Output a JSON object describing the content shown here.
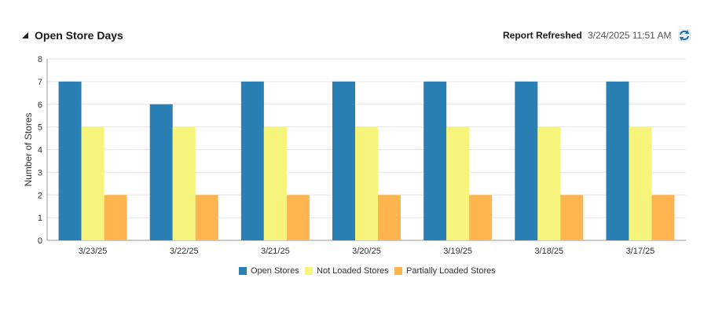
{
  "header": {
    "title": "Open Store Days",
    "refresh_label": "Report Refreshed",
    "refresh_time": "3/24/2025 11:51 AM"
  },
  "icons": {
    "collapse": "triangle-collapse-icon",
    "refresh": "refresh-icon"
  },
  "colors": {
    "open": "#2a7fb4",
    "not_loaded": "#f6f47b",
    "partially_loaded": "#feb54f"
  },
  "chart_data": {
    "type": "bar",
    "categories": [
      "3/23/25",
      "3/22/25",
      "3/21/25",
      "3/20/25",
      "3/19/25",
      "3/18/25",
      "3/17/25"
    ],
    "series": [
      {
        "name": "Open Stores",
        "values": [
          7,
          6,
          7,
          7,
          7,
          7,
          7
        ]
      },
      {
        "name": "Not Loaded Stores",
        "values": [
          5,
          5,
          5,
          5,
          5,
          5,
          5
        ]
      },
      {
        "name": "Partially Loaded Stores",
        "values": [
          2,
          2,
          2,
          2,
          2,
          2,
          2
        ]
      }
    ],
    "title": "",
    "xlabel": "",
    "ylabel": "Number of Stores",
    "ylim": [
      0,
      8
    ],
    "yticks": [
      "0",
      "1",
      "2",
      "3",
      "4",
      "5",
      "6",
      "7",
      "8"
    ],
    "grid": true,
    "legend_position": "bottom"
  }
}
